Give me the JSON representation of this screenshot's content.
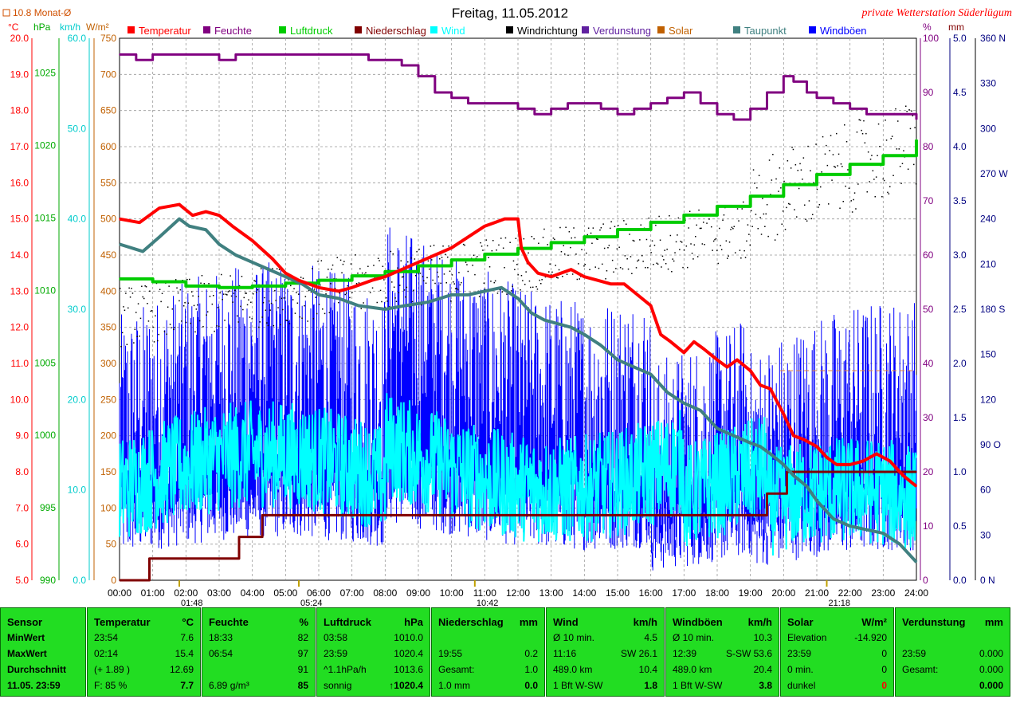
{
  "page": {
    "title": "Freitag, 11.05.2012",
    "station": "private Wetterstation Süderlügum",
    "monat_note": "10.8 Monat-Ø"
  },
  "legend": [
    {
      "label": "Temperatur",
      "color": "#ff0000"
    },
    {
      "label": "Feuchte",
      "color": "#800080"
    },
    {
      "label": "Luftdruck",
      "color": "#00cc00"
    },
    {
      "label": "Niederschlag",
      "color": "#800000"
    },
    {
      "label": "Wind",
      "color": "#00ffff"
    },
    {
      "label": "Windrichtung",
      "color": "#000000"
    },
    {
      "label": "Verdunstung",
      "color": "#6020a0"
    },
    {
      "label": "Solar",
      "color": "#c06000"
    },
    {
      "label": "Taupunkt",
      "color": "#408080"
    },
    {
      "label": "Windböen",
      "color": "#0000ff"
    }
  ],
  "axes": {
    "temp": {
      "unit": "°C",
      "ticks": [
        "20.0",
        "19.0",
        "18.0",
        "17.0",
        "16.0",
        "15.0",
        "14.0",
        "13.0",
        "12.0",
        "11.0",
        "10.0",
        "9.0",
        "8.0",
        "7.0",
        "6.0",
        "5.0"
      ]
    },
    "pressure": {
      "unit": "hPa",
      "ticks": [
        "1025",
        "1020",
        "1015",
        "1010",
        "1005",
        "1000",
        "995",
        "990"
      ]
    },
    "wind": {
      "unit": "km/h",
      "ticks": [
        "60.0",
        "50.0",
        "40.0",
        "30.0",
        "20.0",
        "10.0",
        "0.0"
      ]
    },
    "solar": {
      "unit": "W/m²",
      "ticks": [
        "750",
        "700",
        "650",
        "600",
        "550",
        "500",
        "450",
        "400",
        "350",
        "300",
        "250",
        "200",
        "150",
        "100",
        "50",
        "0"
      ]
    },
    "humidity": {
      "unit": "%",
      "ticks": [
        "100",
        "90",
        "80",
        "70",
        "60",
        "50",
        "40",
        "30",
        "20",
        "10",
        "0"
      ]
    },
    "rain": {
      "unit": "mm",
      "ticks": [
        "5.0",
        "4.5",
        "4.0",
        "3.5",
        "3.0",
        "2.5",
        "2.0",
        "1.5",
        "1.0",
        "0.5",
        "0.0"
      ]
    },
    "direction": {
      "ticks": [
        "360 N",
        "330",
        "300",
        "270 W",
        "240",
        "210",
        "180 S",
        "150",
        "120",
        "90 O",
        "60",
        "30",
        "0 N"
      ]
    },
    "time": {
      "ticks": [
        "00:00",
        "01:00",
        "02:00",
        "03:00",
        "04:00",
        "05:00",
        "06:00",
        "07:00",
        "08:00",
        "09:00",
        "10:00",
        "11:00",
        "12:00",
        "13:00",
        "14:00",
        "15:00",
        "16:00",
        "17:00",
        "18:00",
        "19:00",
        "20:00",
        "21:00",
        "22:00",
        "23:00",
        "24:00"
      ]
    },
    "markers": [
      "01:48",
      "05:24",
      "10:42",
      "21:18"
    ]
  },
  "chart_data": {
    "type": "line",
    "x_unit": "hour",
    "series": [
      {
        "name": "Temperatur",
        "unit": "°C",
        "color": "#ff0000",
        "x": [
          0,
          0.6,
          1.2,
          1.8,
          2.2,
          2.6,
          3,
          3.4,
          4,
          4.6,
          5,
          5.4,
          6,
          6.6,
          7,
          7.6,
          8,
          8.5,
          9,
          9.5,
          10,
          10.5,
          11,
          11.3,
          11.6,
          12,
          12.1,
          12.3,
          12.6,
          13,
          13.3,
          13.6,
          14,
          14.4,
          14.8,
          15.2,
          15.6,
          16,
          16.3,
          16.6,
          17,
          17.3,
          17.6,
          18,
          18.3,
          18.6,
          19,
          19.3,
          19.6,
          20,
          20.3,
          20.6,
          21,
          21.3,
          21.6,
          22,
          22.4,
          22.8,
          23.2,
          23.6,
          24
        ],
        "y": [
          15.0,
          14.9,
          15.3,
          15.4,
          15.1,
          15.2,
          15.1,
          14.8,
          14.4,
          13.9,
          13.5,
          13.3,
          13.1,
          13.0,
          13.1,
          13.3,
          13.4,
          13.6,
          13.8,
          14.0,
          14.2,
          14.5,
          14.8,
          14.9,
          15.0,
          15.0,
          14.2,
          13.8,
          13.5,
          13.4,
          13.5,
          13.6,
          13.4,
          13.3,
          13.2,
          13.2,
          12.9,
          12.6,
          11.8,
          11.6,
          11.3,
          11.6,
          11.4,
          11.1,
          10.9,
          11.1,
          10.8,
          10.4,
          10.3,
          9.6,
          9.0,
          8.9,
          8.7,
          8.4,
          8.2,
          8.2,
          8.3,
          8.5,
          8.3,
          7.9,
          7.6
        ]
      },
      {
        "name": "Taupunkt",
        "unit": "°C",
        "color": "#408080",
        "x": [
          0,
          0.7,
          1.2,
          1.8,
          2.1,
          2.6,
          3,
          3.5,
          4,
          4.5,
          5,
          5.5,
          6,
          6.6,
          7.2,
          8,
          8.6,
          9.3,
          10,
          10.5,
          11,
          11.5,
          12,
          12.4,
          12.8,
          13.2,
          13.6,
          14,
          14.5,
          15,
          15.5,
          16,
          16.5,
          17,
          17.5,
          18,
          18.5,
          19,
          19.3,
          19.6,
          20,
          20.3,
          20.7,
          21,
          21.5,
          22,
          22.5,
          23,
          23.5,
          24
        ],
        "y": [
          14.3,
          14.1,
          14.5,
          15.0,
          14.8,
          14.7,
          14.3,
          14.0,
          13.8,
          13.6,
          13.4,
          13.2,
          12.9,
          12.8,
          12.6,
          12.5,
          12.6,
          12.7,
          12.9,
          12.9,
          13.0,
          13.1,
          12.8,
          12.4,
          12.2,
          12.1,
          12.0,
          11.8,
          11.5,
          11.1,
          10.9,
          10.7,
          10.2,
          9.9,
          9.7,
          9.2,
          9.0,
          8.8,
          8.7,
          8.5,
          8.2,
          7.9,
          7.6,
          7.2,
          6.7,
          6.5,
          6.4,
          6.3,
          6.0,
          5.5
        ]
      },
      {
        "name": "Feuchte",
        "unit": "%",
        "color": "#800080",
        "x": [
          0,
          0.5,
          1,
          1.5,
          2,
          2.5,
          3,
          3.5,
          4,
          4.5,
          5,
          5.5,
          6,
          6.5,
          7,
          7.5,
          8,
          8.5,
          9,
          9.5,
          10,
          10.5,
          11,
          11.5,
          12,
          12.5,
          13,
          13.5,
          14,
          14.5,
          15,
          15.5,
          16,
          16.5,
          17,
          17.5,
          18,
          18.5,
          19,
          19.5,
          20,
          20.3,
          20.7,
          21,
          21.5,
          22,
          22.5,
          23,
          23.5,
          24
        ],
        "y": [
          97,
          96,
          97,
          97,
          97,
          97,
          96,
          97,
          97,
          97,
          97,
          97,
          97,
          97,
          97,
          96,
          96,
          95,
          93,
          90,
          89,
          88,
          88,
          88,
          87,
          86,
          87,
          88,
          88,
          87,
          86,
          87,
          88,
          89,
          90,
          88,
          86,
          85,
          87,
          90,
          93,
          92,
          90,
          89,
          88,
          87,
          86,
          86,
          86,
          85
        ]
      },
      {
        "name": "Luftdruck",
        "unit": "hPa",
        "color": "#00cc00",
        "x": [
          0,
          1,
          2,
          3,
          4,
          5,
          6,
          7,
          8,
          9,
          10,
          11,
          12,
          13,
          14,
          15,
          16,
          17,
          18,
          19,
          20,
          21,
          22,
          23,
          24
        ],
        "y": [
          1010.8,
          1010.6,
          1010.3,
          1010.2,
          1010.3,
          1010.5,
          1010.7,
          1011.0,
          1011.3,
          1011.7,
          1012.1,
          1012.5,
          1012.9,
          1013.3,
          1013.7,
          1014.2,
          1014.7,
          1015.2,
          1015.8,
          1016.5,
          1017.3,
          1018.0,
          1018.7,
          1019.3,
          1020.4
        ]
      },
      {
        "name": "Niederschlag",
        "unit": "mm",
        "color": "#800000",
        "x": [
          0,
          0.9,
          0.9,
          3.6,
          3.6,
          4.3,
          4.3,
          19.5,
          19.5,
          20.1,
          20.1,
          24
        ],
        "y": [
          0.0,
          0.0,
          0.2,
          0.2,
          0.4,
          0.4,
          0.6,
          0.6,
          0.8,
          0.8,
          1.0,
          1.0
        ]
      },
      {
        "name": "Wind",
        "unit": "km/h",
        "color": "#00ffff"
      },
      {
        "name": "Windböen",
        "unit": "km/h",
        "color": "#0000ff"
      },
      {
        "name": "Windrichtung",
        "unit": "°",
        "color": "#000000"
      }
    ],
    "ylim_temp": [
      5,
      20
    ],
    "ylim_humidity": [
      0,
      100
    ],
    "ylim_pressure": [
      990,
      1027.4
    ],
    "ylim_wind": [
      0,
      60
    ],
    "ylim_rain": [
      0,
      5
    ],
    "xlim": [
      0,
      24
    ]
  },
  "stats": [
    {
      "header": "Sensor",
      "unit": "",
      "rows": [
        [
          "MinWert",
          ""
        ],
        [
          "MaxWert",
          ""
        ],
        [
          "Durchschnitt",
          ""
        ],
        [
          "11.05. 23:59",
          ""
        ]
      ],
      "bold_label": true
    },
    {
      "header": "Temperatur",
      "unit": "°C",
      "rows": [
        [
          "23:54",
          "7.6"
        ],
        [
          "02:14",
          "15.4"
        ],
        [
          "(+ 1.89 )",
          "12.69"
        ],
        [
          "F: 85 %",
          "7.7"
        ]
      ]
    },
    {
      "header": "Feuchte",
      "unit": "%",
      "rows": [
        [
          "18:33",
          "82"
        ],
        [
          "06:54",
          "97"
        ],
        [
          "",
          "91"
        ],
        [
          "6.89 g/m³",
          "85"
        ]
      ]
    },
    {
      "header": "Luftdruck",
      "unit": "hPa",
      "rows": [
        [
          "03:58",
          "1010.0"
        ],
        [
          "23:59",
          "1020.4"
        ],
        [
          "^1.1hPa/h",
          "1013.6"
        ],
        [
          "sonnig",
          "↑1020.4"
        ]
      ]
    },
    {
      "header": "Niederschlag",
      "unit": "mm",
      "rows": [
        [
          "",
          ""
        ],
        [
          "19:55",
          "0.2"
        ],
        [
          "Gesamt:",
          "1.0"
        ],
        [
          "1.0 mm",
          "0.0"
        ]
      ]
    },
    {
      "header": "Wind",
      "unit": "km/h",
      "rows": [
        [
          "Ø 10 min.",
          "4.5"
        ],
        [
          "11:16",
          "SW 26.1"
        ],
        [
          "489.0 km",
          "10.4"
        ],
        [
          "1 Bft W-SW",
          "1.8"
        ]
      ]
    },
    {
      "header": "Windböen",
      "unit": "km/h",
      "rows": [
        [
          "Ø 10 min.",
          "10.3"
        ],
        [
          "12:39",
          "S-SW 53.6"
        ],
        [
          "489.0 km",
          "20.4"
        ],
        [
          "1 Bft W-SW",
          "3.8"
        ]
      ]
    },
    {
      "header": "Solar",
      "unit": "W/m²",
      "rows": [
        [
          "Elevation",
          "-14.920"
        ],
        [
          "23:59",
          "0"
        ],
        [
          "0 min.",
          "0"
        ],
        [
          "dunkel",
          "0"
        ]
      ]
    },
    {
      "header": "Verdunstung",
      "unit": "mm",
      "rows": [
        [
          "",
          ""
        ],
        [
          "23:59",
          "0.000"
        ],
        [
          "Gesamt:",
          "0.000"
        ],
        [
          "",
          "0.000"
        ]
      ]
    }
  ]
}
